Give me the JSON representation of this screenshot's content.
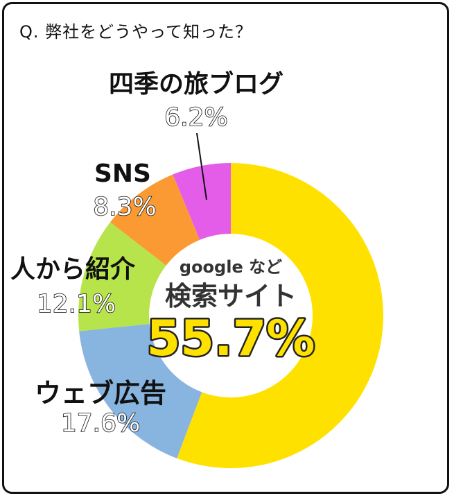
{
  "question": "Q. 弊社をどうやって知った？",
  "center": {
    "line1": "google など",
    "line2": "検索サイト",
    "pct": "55.7%"
  },
  "chart_data": {
    "type": "pie",
    "style": "donut",
    "categories": [
      "検索サイト",
      "ウェブ広告",
      "人から紹介",
      "SNS",
      "四季の旅ブログ"
    ],
    "values": [
      55.7,
      17.6,
      12.1,
      8.3,
      6.2
    ],
    "pct_labels": [
      "55.7%",
      "17.6%",
      "12.1%",
      "8.3%",
      "6.2%"
    ],
    "colors": [
      "#FFE100",
      "#88B4E0",
      "#B7E34B",
      "#FB9A33",
      "#E35DE8"
    ],
    "legend": "none"
  }
}
